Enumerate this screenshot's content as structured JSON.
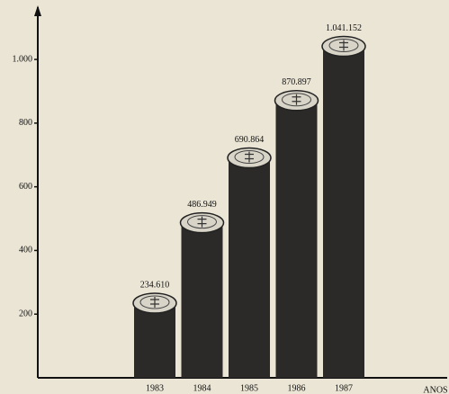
{
  "chart_data": {
    "type": "bar",
    "categories": [
      "1983",
      "1984",
      "1985",
      "1986",
      "1987"
    ],
    "values": [
      234.61,
      486.949,
      690.864,
      870.897,
      1041.152
    ],
    "value_labels": [
      "234.610",
      "486.949",
      "690.864",
      "870.897",
      "1.041.152"
    ],
    "color": "#2b2a28",
    "x_label": "ANOS",
    "ylim": [
      0,
      1150
    ],
    "yticks": [
      200,
      400,
      600,
      800,
      {
        "value": 1000,
        "label": "1.000"
      }
    ]
  }
}
